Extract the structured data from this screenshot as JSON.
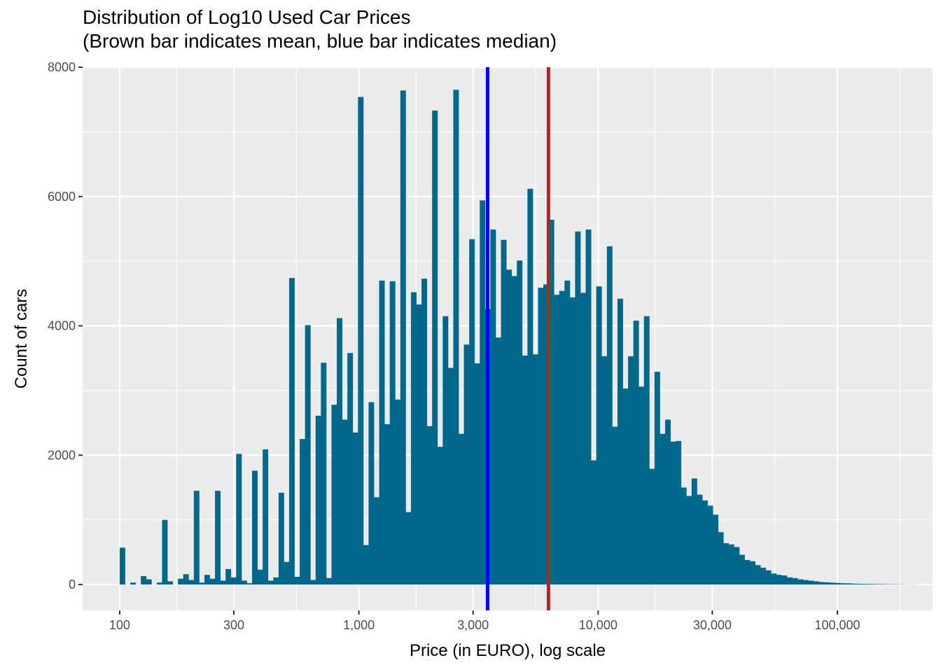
{
  "chart_data": {
    "type": "bar",
    "title": "Distribution of Log10 Used Car Prices",
    "subtitle": "(Brown bar indicates mean, blue bar indicates median)",
    "xlabel": "Price (in EURO), log scale",
    "ylabel": "Count of cars",
    "x_scale": "log10",
    "xlim": [
      70,
      250000
    ],
    "ylim": [
      -400,
      8000
    ],
    "x_ticks": [
      100,
      300,
      1000,
      3000,
      10000,
      30000,
      100000
    ],
    "x_tick_labels": [
      "100",
      "300",
      "1,000",
      "3,000",
      "10,000",
      "30,000",
      "100,000"
    ],
    "y_ticks": [
      0,
      2000,
      4000,
      6000,
      8000
    ],
    "y_tick_labels": [
      "0",
      "2000",
      "4000",
      "6000",
      "8000"
    ],
    "grid": true,
    "bar_color": "#00688B",
    "background_color": "#EBEBEB",
    "mean_line": {
      "value": 6200,
      "color": "#A52A2A"
    },
    "median_line": {
      "value": 3450,
      "color": "#0000FF"
    },
    "bins": {
      "start_price": 100,
      "end_price": 220000,
      "counts": [
        570,
        0,
        30,
        0,
        130,
        80,
        0,
        30,
        1000,
        50,
        0,
        90,
        160,
        70,
        1450,
        30,
        150,
        90,
        1450,
        60,
        240,
        110,
        2020,
        60,
        20,
        1760,
        230,
        2090,
        60,
        110,
        1420,
        350,
        4740,
        120,
        2250,
        4010,
        70,
        2610,
        3430,
        100,
        2780,
        4120,
        2550,
        3580,
        2350,
        7540,
        610,
        2820,
        1350,
        4700,
        2480,
        4690,
        2860,
        7640,
        1120,
        4520,
        4330,
        4730,
        2450,
        7330,
        2130,
        4150,
        3350,
        7650,
        2330,
        3710,
        5340,
        3420,
        5940,
        4260,
        5490,
        3820,
        5330,
        4870,
        4770,
        5010,
        3540,
        6120,
        3560,
        4590,
        4640,
        5640,
        4480,
        4540,
        4700,
        4440,
        5460,
        4510,
        5490,
        1920,
        4610,
        3530,
        5230,
        2440,
        4420,
        3030,
        3530,
        4080,
        3060,
        4150,
        1790,
        3290,
        2330,
        2550,
        2210,
        2220,
        1500,
        1370,
        1640,
        1390,
        1300,
        1220,
        1080,
        810,
        640,
        620,
        580,
        460,
        380,
        360,
        300,
        260,
        220,
        170,
        150,
        140,
        110,
        100,
        80,
        70,
        60,
        50,
        40,
        35,
        30,
        25,
        20,
        18,
        15,
        12,
        10,
        9,
        8,
        7,
        6,
        5,
        4,
        3,
        2,
        2,
        1
      ]
    }
  }
}
